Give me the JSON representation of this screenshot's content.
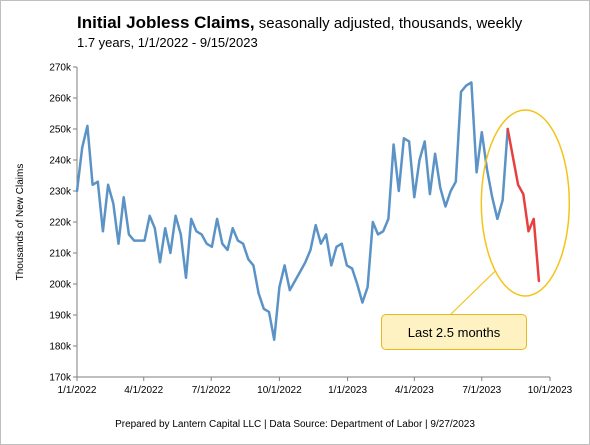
{
  "title": "Initial Jobless Claims,",
  "title_suffix": " seasonally adjusted, thousands, weekly",
  "subtitle": "1.7 years, 1/1/2022 - 9/15/2023",
  "footer": "Prepared by Lantern Capital LLC | Data Source: Department of Labor | 9/27/2023",
  "callout": "Last 2.5 months",
  "colors": {
    "main": "#5b93c7",
    "recent": "#e8403f",
    "ellipse": "#f3c418",
    "axis": "#7f7f7f"
  },
  "chart_data": {
    "type": "line",
    "title": "Initial Jobless Claims, seasonally adjusted, thousands, weekly",
    "ylabel": "Thousands of New Claims",
    "xlabel": "",
    "ylim": [
      170,
      270
    ],
    "xlim": [
      "2022-01-01",
      "2023-10-01"
    ],
    "y_ticks": [
      "170k",
      "180k",
      "190k",
      "200k",
      "210k",
      "220k",
      "230k",
      "240k",
      "250k",
      "260k",
      "270k"
    ],
    "x_ticks": [
      "1/1/2022",
      "4/1/2022",
      "7/1/2022",
      "10/1/2022",
      "1/1/2023",
      "4/1/2023",
      "7/1/2023",
      "10/1/2023"
    ],
    "grid": false,
    "series": [
      {
        "color": "#5b93c7",
        "points": [
          [
            "2022-01-01",
            230
          ],
          [
            "2022-01-08",
            244
          ],
          [
            "2022-01-15",
            251
          ],
          [
            "2022-01-22",
            232
          ],
          [
            "2022-01-29",
            233
          ],
          [
            "2022-02-05",
            217
          ],
          [
            "2022-02-12",
            232
          ],
          [
            "2022-02-19",
            226
          ],
          [
            "2022-02-26",
            213
          ],
          [
            "2022-03-05",
            228
          ],
          [
            "2022-03-12",
            216
          ],
          [
            "2022-03-19",
            214
          ],
          [
            "2022-03-26",
            214
          ],
          [
            "2022-04-02",
            214
          ],
          [
            "2022-04-09",
            222
          ],
          [
            "2022-04-16",
            218
          ],
          [
            "2022-04-23",
            207
          ],
          [
            "2022-04-30",
            218
          ],
          [
            "2022-05-07",
            210
          ],
          [
            "2022-05-14",
            222
          ],
          [
            "2022-05-21",
            216
          ],
          [
            "2022-05-28",
            202
          ],
          [
            "2022-06-04",
            221
          ],
          [
            "2022-06-11",
            217
          ],
          [
            "2022-06-18",
            216
          ],
          [
            "2022-06-25",
            213
          ],
          [
            "2022-07-02",
            212
          ],
          [
            "2022-07-09",
            221
          ],
          [
            "2022-07-16",
            213
          ],
          [
            "2022-07-23",
            211
          ],
          [
            "2022-07-30",
            218
          ],
          [
            "2022-08-06",
            214
          ],
          [
            "2022-08-13",
            213
          ],
          [
            "2022-08-20",
            208
          ],
          [
            "2022-08-27",
            206
          ],
          [
            "2022-09-03",
            197
          ],
          [
            "2022-09-10",
            192
          ],
          [
            "2022-09-17",
            191
          ],
          [
            "2022-09-24",
            182
          ],
          [
            "2022-10-01",
            199
          ],
          [
            "2022-10-08",
            206
          ],
          [
            "2022-10-15",
            198
          ],
          [
            "2022-10-22",
            201
          ],
          [
            "2022-10-29",
            204
          ],
          [
            "2022-11-05",
            207
          ],
          [
            "2022-11-12",
            211
          ],
          [
            "2022-11-19",
            219
          ],
          [
            "2022-11-26",
            213
          ],
          [
            "2022-12-03",
            216
          ],
          [
            "2022-12-10",
            206
          ],
          [
            "2022-12-17",
            212
          ],
          [
            "2022-12-24",
            213
          ],
          [
            "2022-12-31",
            206
          ],
          [
            "2023-01-07",
            205
          ],
          [
            "2023-01-14",
            200
          ],
          [
            "2023-01-21",
            194
          ],
          [
            "2023-01-28",
            199
          ],
          [
            "2023-02-04",
            220
          ],
          [
            "2023-02-11",
            216
          ],
          [
            "2023-02-18",
            217
          ],
          [
            "2023-02-25",
            221
          ],
          [
            "2023-03-04",
            245
          ],
          [
            "2023-03-11",
            230
          ],
          [
            "2023-03-18",
            247
          ],
          [
            "2023-03-25",
            246
          ],
          [
            "2023-04-01",
            228
          ],
          [
            "2023-04-08",
            240
          ],
          [
            "2023-04-15",
            246
          ],
          [
            "2023-04-22",
            229
          ],
          [
            "2023-04-29",
            242
          ],
          [
            "2023-05-06",
            231
          ],
          [
            "2023-05-13",
            225
          ],
          [
            "2023-05-20",
            230
          ],
          [
            "2023-05-27",
            233
          ],
          [
            "2023-06-03",
            262
          ],
          [
            "2023-06-10",
            264
          ],
          [
            "2023-06-17",
            265
          ],
          [
            "2023-06-24",
            236
          ],
          [
            "2023-07-01",
            249
          ],
          [
            "2023-07-08",
            237
          ],
          [
            "2023-07-15",
            228
          ],
          [
            "2023-07-22",
            221
          ],
          [
            "2023-07-29",
            227
          ],
          [
            "2023-08-05",
            250
          ]
        ]
      },
      {
        "color": "#e8403f",
        "points": [
          [
            "2023-08-05",
            250
          ],
          [
            "2023-08-12",
            241
          ],
          [
            "2023-08-19",
            232
          ],
          [
            "2023-08-26",
            229
          ],
          [
            "2023-09-02",
            217
          ],
          [
            "2023-09-09",
            221
          ],
          [
            "2023-09-16",
            201
          ]
        ]
      }
    ],
    "annotations": [
      {
        "text": "Last 2.5 months"
      }
    ]
  }
}
